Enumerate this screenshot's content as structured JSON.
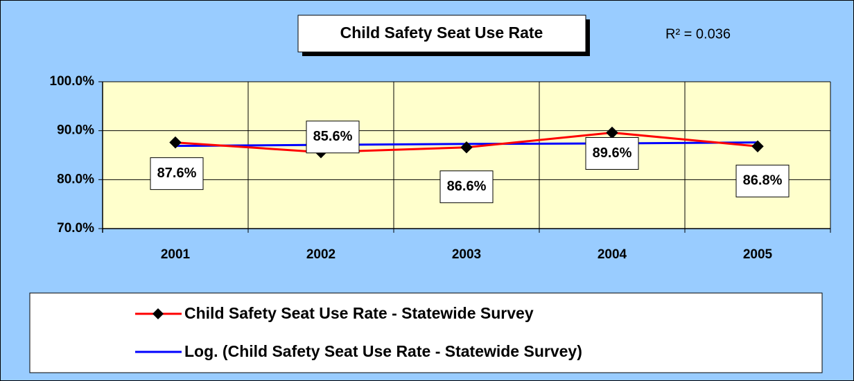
{
  "chart_data": {
    "type": "line",
    "title": "Child Safety Seat Use Rate",
    "annotation": "R² = 0.036",
    "categories": [
      "2001",
      "2002",
      "2003",
      "2004",
      "2005"
    ],
    "series": [
      {
        "name": "Child Safety Seat Use Rate - Statewide Survey",
        "color": "#ff0000",
        "marker": "diamond",
        "values": [
          87.6,
          85.6,
          86.6,
          89.6,
          86.8
        ],
        "value_labels": [
          "87.6%",
          "85.6%",
          "86.6%",
          "89.6%",
          "86.8%"
        ]
      },
      {
        "name": "Log. (Child Safety Seat Use Rate - Statewide Survey)",
        "color": "#0000ff",
        "values": [
          86.9,
          87.1,
          87.3,
          87.4,
          87.6
        ]
      }
    ],
    "ylim": [
      70,
      100
    ],
    "yticks": [
      {
        "value": 70,
        "label": "70.0%"
      },
      {
        "value": 80,
        "label": "80.0%"
      },
      {
        "value": 90,
        "label": "90.0%"
      },
      {
        "value": 100,
        "label": "100.0%"
      }
    ],
    "grid": true,
    "legend": "bottom"
  }
}
